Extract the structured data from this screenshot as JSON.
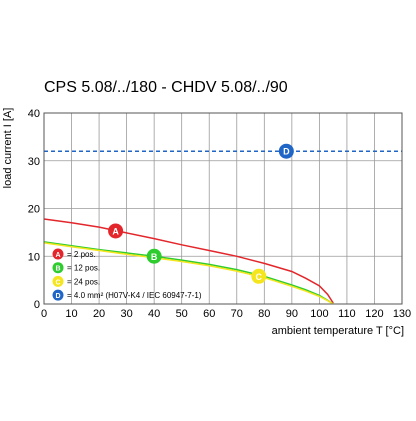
{
  "chart_data": {
    "type": "line",
    "title": "CPS 5.08/../180 - CHDV 5.08/../90",
    "xlabel": "ambient temperature T [°C]",
    "ylabel": "load current I [A]",
    "xlim": [
      0,
      130
    ],
    "ylim": [
      0,
      40
    ],
    "xticks": [
      "0",
      "10",
      "20",
      "30",
      "40",
      "50",
      "60",
      "70",
      "80",
      "90",
      "100",
      "110",
      "120",
      "130"
    ],
    "yticks": [
      "0",
      "10",
      "20",
      "30",
      "40"
    ],
    "grid": true,
    "legend_position": "bottom-left",
    "series": [
      {
        "marker": "A",
        "label": "= 2 pos.",
        "color": "#e3262b",
        "style": "solid",
        "x": [
          0,
          10,
          20,
          30,
          40,
          50,
          60,
          70,
          80,
          90,
          95,
          100,
          103,
          105
        ],
        "y": [
          17.8,
          17.0,
          16.1,
          14.9,
          13.7,
          12.4,
          11.2,
          10.0,
          8.5,
          6.8,
          5.4,
          3.8,
          2.0,
          0.2
        ],
        "marker_at": [
          26,
          15.3
        ]
      },
      {
        "marker": "B",
        "label": "= 12 pos.",
        "color": "#2ecc2e",
        "style": "solid",
        "x": [
          0,
          10,
          20,
          30,
          40,
          50,
          60,
          70,
          80,
          90,
          95,
          100,
          103,
          105
        ],
        "y": [
          13.0,
          12.2,
          11.4,
          10.7,
          10.0,
          9.2,
          8.3,
          7.2,
          5.8,
          4.0,
          3.0,
          1.8,
          0.8,
          0.0
        ],
        "marker_at": [
          40,
          10.0
        ]
      },
      {
        "marker": "C",
        "label": "= 24 pos.",
        "color": "#f5e51e",
        "style": "solid",
        "x": [
          0,
          10,
          20,
          30,
          40,
          50,
          60,
          70,
          80,
          90,
          95,
          100,
          103,
          105
        ],
        "y": [
          12.8,
          12.0,
          11.2,
          10.4,
          9.7,
          8.9,
          8.0,
          6.9,
          5.5,
          3.7,
          2.7,
          1.6,
          0.7,
          0.0
        ],
        "marker_at": [
          78,
          5.8
        ]
      },
      {
        "marker": "D",
        "label": "= 4.0 mm² (H07V-K4 / IEC 60947-7-1)",
        "color": "#1f66c7",
        "style": "dashed",
        "x": [
          0,
          130
        ],
        "y": [
          32,
          32
        ],
        "marker_at": [
          88,
          32
        ]
      }
    ]
  }
}
